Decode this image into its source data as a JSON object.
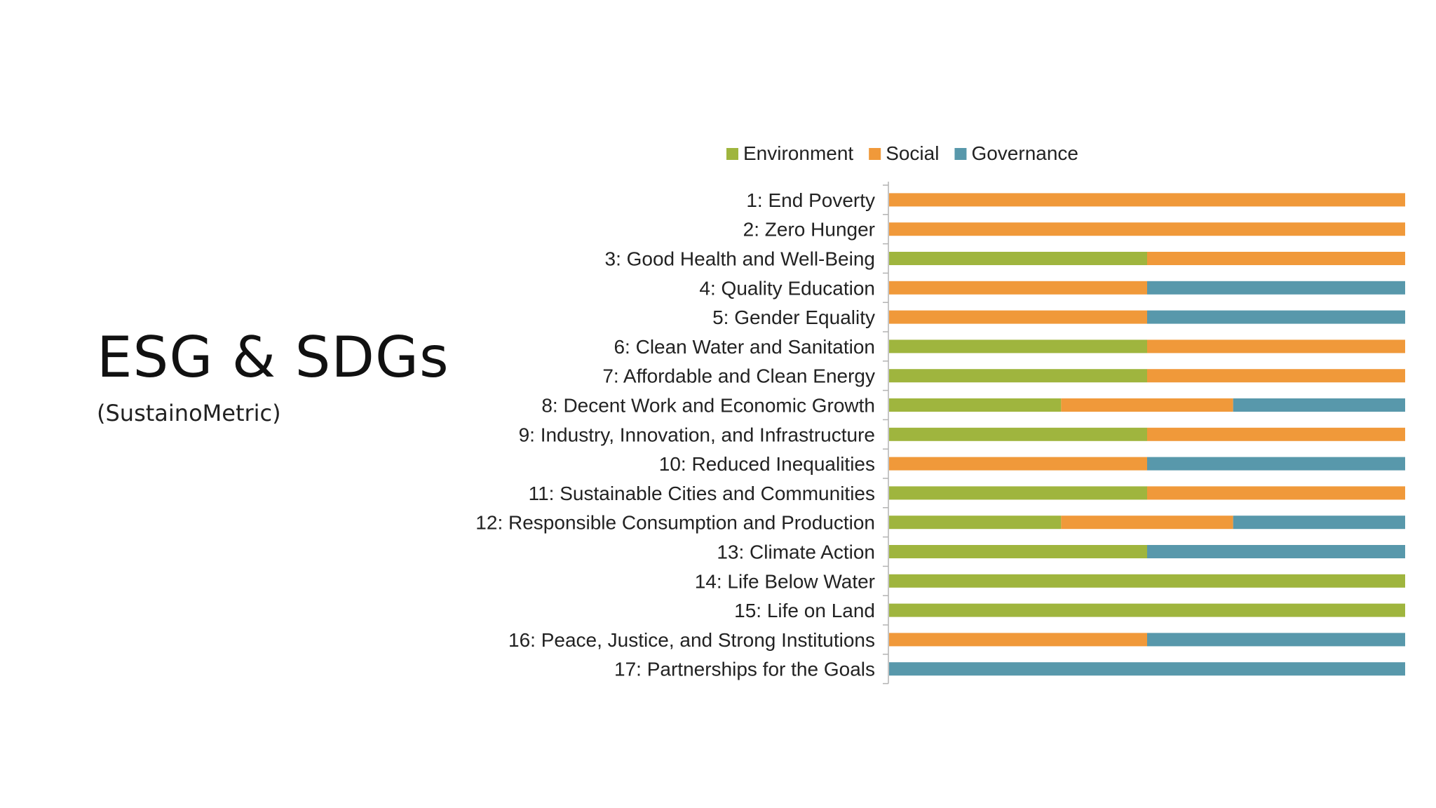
{
  "slide": {
    "title": "ESG & SDGs",
    "subtitle": "(SustainoMetric)"
  },
  "chart_data": {
    "type": "bar",
    "orientation": "horizontal",
    "stacked": true,
    "normalized": true,
    "title": "",
    "xlabel": "",
    "ylabel": "",
    "xlim": [
      0,
      1
    ],
    "grid": false,
    "legend_position": "top",
    "categories": [
      "1: End Poverty",
      "2: Zero Hunger",
      "3: Good Health and Well-Being",
      "4: Quality Education",
      "5: Gender Equality",
      "6: Clean Water and Sanitation",
      "7: Affordable and Clean Energy",
      "8: Decent Work and Economic Growth",
      "9: Industry, Innovation, and Infrastructure",
      "10: Reduced Inequalities",
      "11: Sustainable Cities and Communities",
      "12: Responsible Consumption and Production",
      "13: Climate Action",
      "14: Life Below Water",
      "15: Life on Land",
      "16: Peace, Justice, and Strong Institutions",
      "17: Partnerships for the Goals"
    ],
    "series": [
      {
        "name": "Environment",
        "color": "#9fb53e",
        "values": [
          0,
          0,
          1,
          0,
          0,
          1,
          1,
          1,
          1,
          0,
          1,
          1,
          1,
          1,
          1,
          0,
          0
        ]
      },
      {
        "name": "Social",
        "color": "#f0993a",
        "values": [
          1,
          1,
          1,
          1,
          1,
          1,
          1,
          1,
          1,
          1,
          1,
          1,
          0,
          0,
          0,
          1,
          0
        ]
      },
      {
        "name": "Governance",
        "color": "#5898ab",
        "values": [
          0,
          0,
          0,
          1,
          1,
          0,
          0,
          1,
          0,
          1,
          0,
          1,
          1,
          0,
          0,
          1,
          1
        ]
      }
    ]
  }
}
